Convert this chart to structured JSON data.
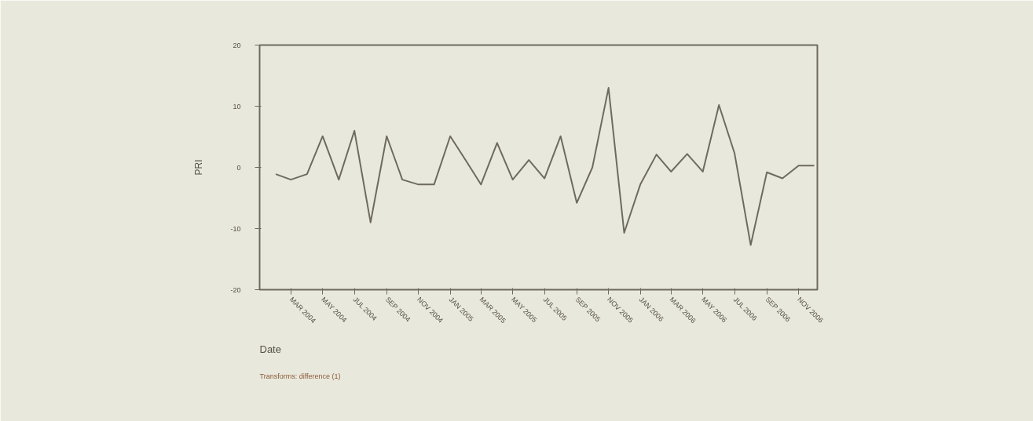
{
  "chart_data": {
    "type": "line",
    "xlabel": "Date",
    "ylabel": "PRI",
    "annotations": [
      "Transforms: difference (1)"
    ],
    "x": [
      "2004-02",
      "2004-03",
      "2004-04",
      "2004-05",
      "2004-06",
      "2004-07",
      "2004-08",
      "2004-09",
      "2004-10",
      "2004-11",
      "2004-12",
      "2005-01",
      "2005-02",
      "2005-03",
      "2005-04",
      "2005-05",
      "2005-06",
      "2005-07",
      "2005-08",
      "2005-09",
      "2005-10",
      "2005-11",
      "2005-12",
      "2006-01",
      "2006-02",
      "2006-03",
      "2006-04",
      "2006-05",
      "2006-06",
      "2006-07",
      "2006-08",
      "2006-09",
      "2006-10",
      "2006-11",
      "2006-12"
    ],
    "series": [
      {
        "color": "#6e6a60",
        "values": [
          -1.1,
          -2.0,
          -1.1,
          5.1,
          -2.0,
          6.0,
          -9.0,
          5.1,
          -2.0,
          -2.8,
          -2.8,
          5.1,
          1.0,
          -2.8,
          4.0,
          -2.0,
          1.2,
          -1.8,
          5.1,
          -5.8,
          0.0,
          13.0,
          -10.7,
          -2.8,
          2.1,
          -0.7,
          2.2,
          -0.7,
          10.2,
          2.3,
          -12.7,
          -0.8,
          -1.8,
          0.3,
          0.3
        ]
      }
    ],
    "xlim": [
      "2004-01-01",
      "2006-12-07"
    ],
    "xticks": [
      {
        "value": "2004-03",
        "label": "MAR 2004"
      },
      {
        "value": "2004-05",
        "label": "MAY 2004"
      },
      {
        "value": "2004-07",
        "label": "JUL 2004"
      },
      {
        "value": "2004-09",
        "label": "SEP 2004"
      },
      {
        "value": "2004-11",
        "label": "NOV 2004"
      },
      {
        "value": "2005-01",
        "label": "JAN 2005"
      },
      {
        "value": "2005-03",
        "label": "MAR 2005"
      },
      {
        "value": "2005-05",
        "label": "MAY 2005"
      },
      {
        "value": "2005-07",
        "label": "JUL 2005"
      },
      {
        "value": "2005-09",
        "label": "SEP 2005"
      },
      {
        "value": "2005-11",
        "label": "NOV 2005"
      },
      {
        "value": "2006-01",
        "label": "JAN 2006"
      },
      {
        "value": "2006-03",
        "label": "MAR 2006"
      },
      {
        "value": "2006-05",
        "label": "MAY 2006"
      },
      {
        "value": "2006-07",
        "label": "JUL 2006"
      },
      {
        "value": "2006-09",
        "label": "SEP 2006"
      },
      {
        "value": "2006-11",
        "label": "NOV 2006"
      }
    ],
    "ylim": [
      -20,
      20
    ],
    "yticks": [
      -20,
      -10,
      0,
      10,
      20
    ],
    "grid": false,
    "line_style": "solid",
    "marker": "none"
  }
}
